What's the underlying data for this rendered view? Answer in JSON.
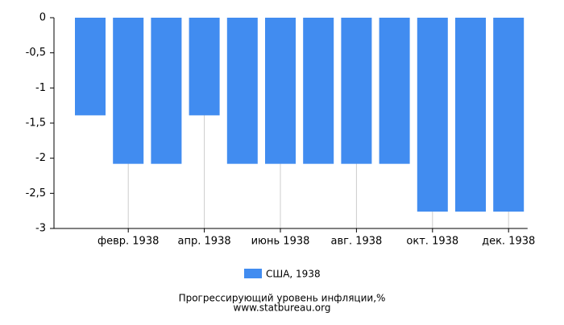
{
  "chart_data": {
    "type": "bar",
    "categories": [
      null,
      "февр. 1938",
      null,
      "апр. 1938",
      null,
      "июнь 1938",
      null,
      "авг. 1938",
      null,
      "окт. 1938",
      null,
      "дек. 1938"
    ],
    "series": [
      {
        "name": "США, 1938",
        "color": "#418cf0",
        "values": [
          -1.39,
          -2.08,
          -2.08,
          -1.39,
          -2.08,
          -2.08,
          -2.08,
          -2.08,
          -2.08,
          -2.76,
          -2.76,
          -2.76
        ]
      }
    ],
    "ylim": [
      -3,
      0
    ],
    "yticks": [
      0,
      {
        "value": -0.5,
        "label": "-0,5"
      },
      -1,
      {
        "value": -1.5,
        "label": "-1,5"
      },
      -2,
      {
        "value": -2.5,
        "label": "-2,5"
      },
      -3
    ],
    "grid": true,
    "legend": "bottom",
    "caption": "Прогрессирующий уровень инфляции,%",
    "source": "www.statbureau.org"
  }
}
